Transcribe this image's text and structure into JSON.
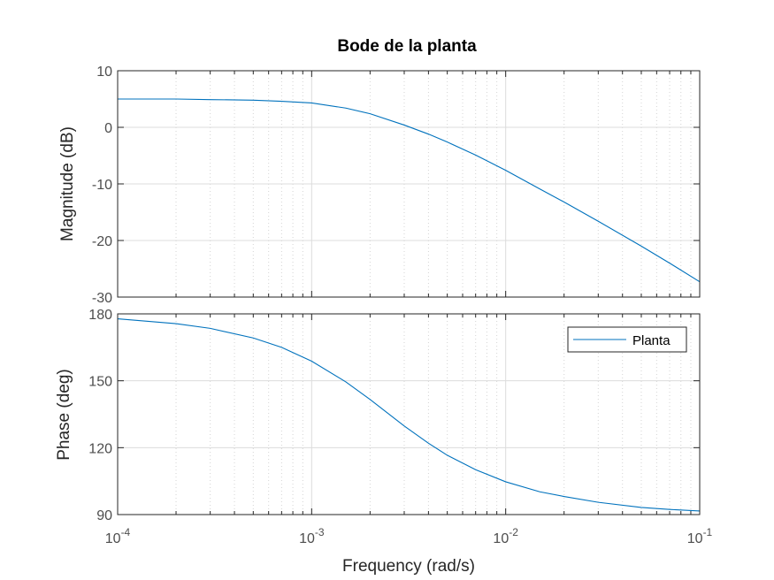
{
  "chart_data": {
    "type": "line",
    "title": "Bode de la planta",
    "xlabel": "Frequency  (rad/s)",
    "xscale": "log",
    "xlim": [
      0.0001,
      0.1
    ],
    "x_ticks": [
      {
        "base": "10",
        "exp": "-4"
      },
      {
        "base": "10",
        "exp": "-3"
      },
      {
        "base": "10",
        "exp": "-2"
      },
      {
        "base": "10",
        "exp": "-1"
      }
    ],
    "grid": true,
    "line_color": "#0072BD",
    "legend": {
      "label": "Planta",
      "location": "top-right of phase plot"
    },
    "panels": [
      {
        "name": "magnitude",
        "ylabel": "Magnitude (dB)",
        "ylim": [
          -30,
          10
        ],
        "yticks": [
          "10",
          "0",
          "-10",
          "-20",
          "-30"
        ],
        "series": [
          {
            "name": "Planta",
            "x": [
              0.0001,
              0.0002,
              0.0003,
              0.0005,
              0.0007,
              0.001,
              0.0015,
              0.002,
              0.003,
              0.004,
              0.005,
              0.007,
              0.01,
              0.015,
              0.02,
              0.03,
              0.05,
              0.07,
              0.1
            ],
            "y": [
              5.0,
              5.0,
              4.9,
              4.8,
              4.6,
              4.3,
              3.4,
              2.4,
              0.4,
              -1.2,
              -2.6,
              -4.9,
              -7.6,
              -10.9,
              -13.2,
              -16.6,
              -21.0,
              -24.0,
              -27.3
            ]
          }
        ]
      },
      {
        "name": "phase",
        "ylabel": "Phase (deg)",
        "ylim": [
          90,
          180
        ],
        "yticks": [
          "180",
          "150",
          "120",
          "90"
        ],
        "series": [
          {
            "name": "Planta",
            "x": [
              0.0001,
              0.0002,
              0.0003,
              0.0005,
              0.0007,
              0.001,
              0.0015,
              0.002,
              0.003,
              0.004,
              0.005,
              0.007,
              0.01,
              0.015,
              0.02,
              0.03,
              0.05,
              0.07,
              0.1
            ],
            "y": [
              177.8,
              175.6,
              173.5,
              169.2,
              165.0,
              158.8,
              149.5,
              141.6,
              129.7,
              122.0,
              116.6,
              110.1,
              104.7,
              100.2,
              98.1,
              95.5,
              93.2,
              92.3,
              91.6
            ]
          }
        ]
      }
    ]
  }
}
